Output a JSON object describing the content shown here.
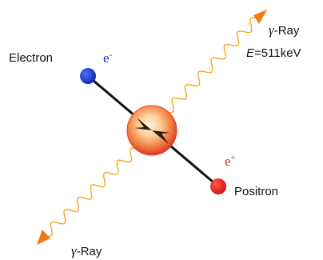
{
  "labels": {
    "electron": "Electron",
    "electron_symbol": "e",
    "electron_charge": "-",
    "positron": "Positron",
    "positron_symbol": "e",
    "positron_charge": "+",
    "gamma_symbol": "γ",
    "gamma_top_text": "-Ray",
    "gamma_bottom_text": "-Ray",
    "energy_var": "E",
    "energy_value": "=511keV"
  },
  "colors": {
    "electron": "#1f3fc7",
    "positron": "#e8141a",
    "photon_wave": "#f5a623",
    "photon_arrow": "#f07b12",
    "track": "#111111",
    "annihilation_core": "#ffd9b0",
    "annihilation_edge": "#e24a2a"
  }
}
